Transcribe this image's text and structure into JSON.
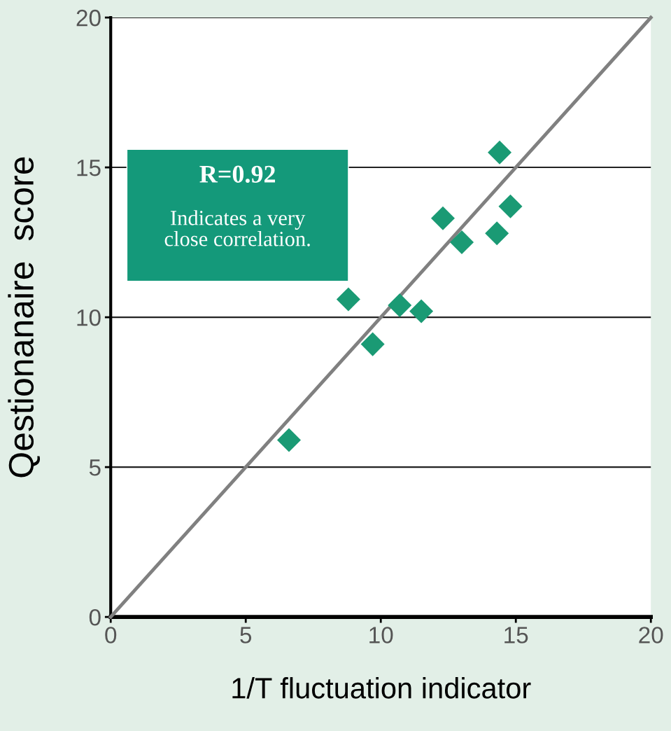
{
  "chart_data": {
    "type": "scatter",
    "xlabel": "1/T fluctuation indicator",
    "ylabel": "Qestionanaire  score",
    "xlim": [
      0,
      20
    ],
    "ylim": [
      0,
      20
    ],
    "xticks": [
      0,
      5,
      10,
      15,
      20
    ],
    "yticks": [
      0,
      5,
      10,
      15,
      20
    ],
    "grid": "y",
    "annotations": [
      "R=0.92",
      "Indicates a very\nclose correlation."
    ],
    "series": [
      {
        "color": "#1a9a74",
        "marker": "diamond",
        "x": [
          6.6,
          8.8,
          9.7,
          10.7,
          11.5,
          12.3,
          13.0,
          14.4,
          14.3,
          14.8
        ],
        "values": [
          5.9,
          10.6,
          9.1,
          10.4,
          10.2,
          13.3,
          12.5,
          15.5,
          12.8,
          13.7
        ]
      },
      {
        "type": "line",
        "color": "#808080",
        "marker": "none",
        "x": [
          0,
          20
        ],
        "values": [
          0,
          20
        ]
      }
    ]
  }
}
